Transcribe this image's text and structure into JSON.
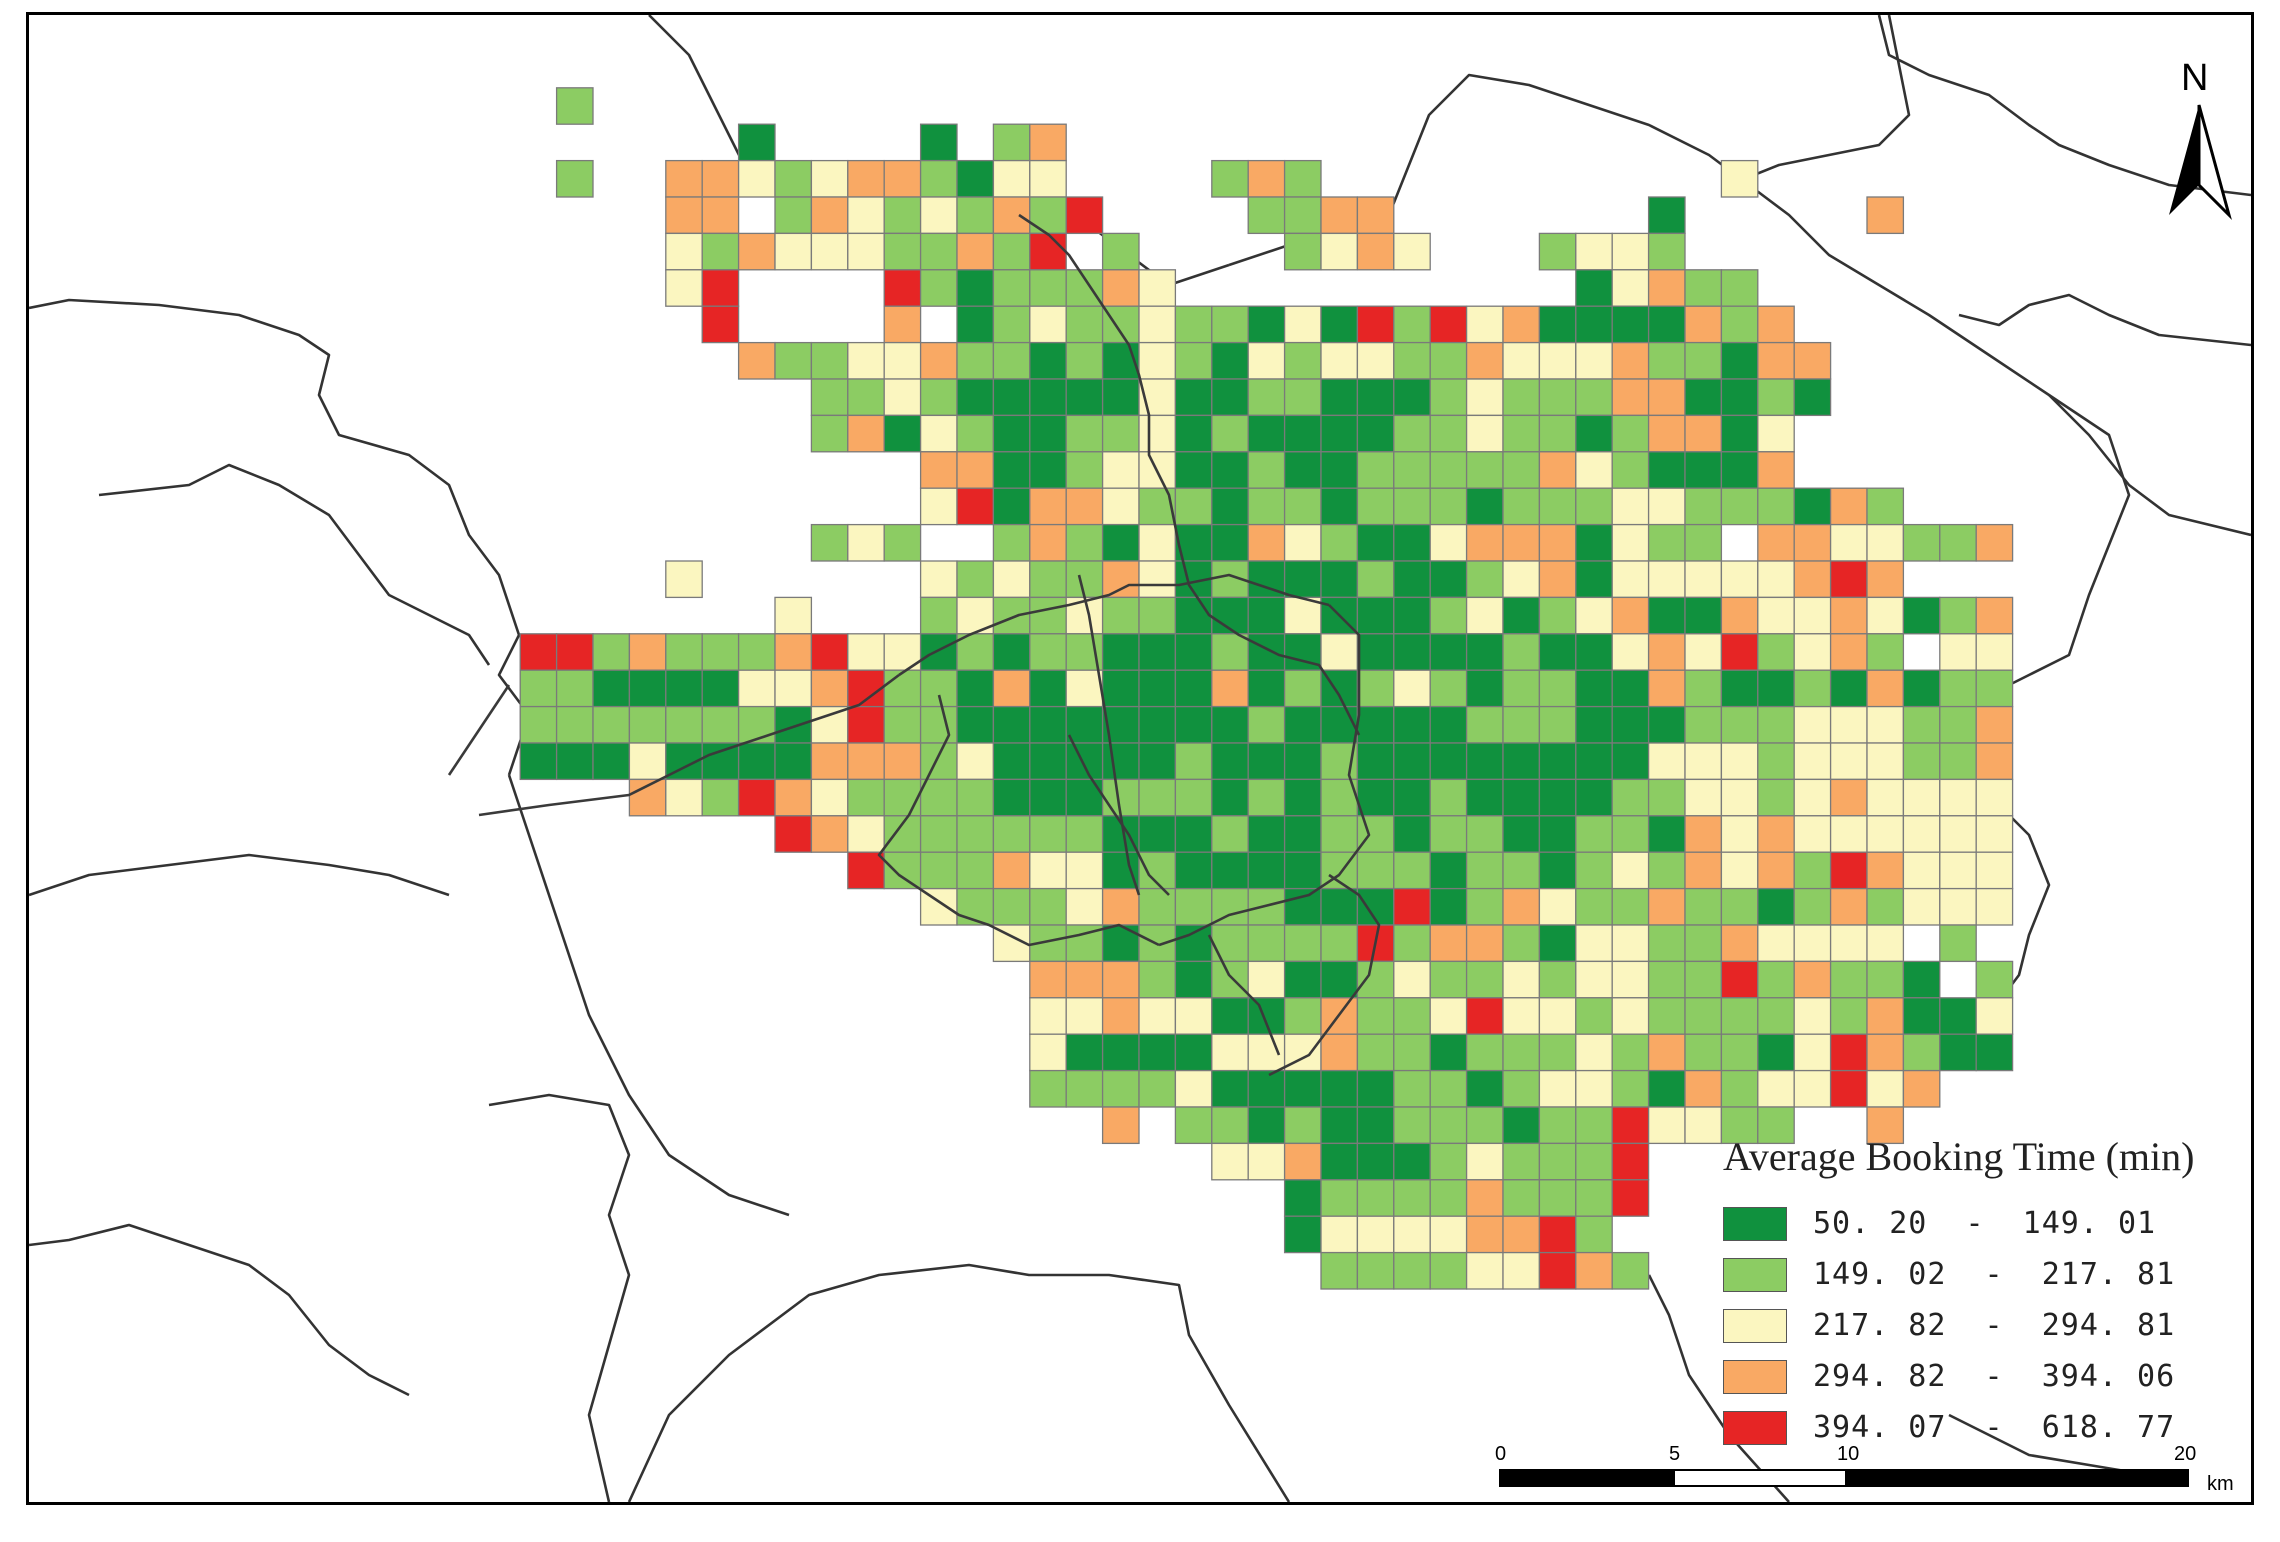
{
  "legend": {
    "title": "Average Booking Time (min)",
    "classes": [
      {
        "label": "50. 20  -  149. 01",
        "color": "#10913e",
        "min": 50.2,
        "max": 149.01
      },
      {
        "label": "149. 02  -  217. 81",
        "color": "#8ccc63",
        "min": 149.02,
        "max": 217.81
      },
      {
        "label": "217. 82  -  294. 81",
        "color": "#fbf6c0",
        "min": 217.82,
        "max": 294.81
      },
      {
        "label": "294. 82  -  394. 06",
        "color": "#f9a964",
        "min": 294.82,
        "max": 394.06
      },
      {
        "label": "394. 07  -  618. 77",
        "color": "#e62525",
        "min": 394.07,
        "max": 618.77
      }
    ]
  },
  "north_arrow": {
    "label": "N"
  },
  "scale_bar": {
    "ticks": [
      "0",
      "5",
      "10",
      "20"
    ],
    "unit": "km"
  },
  "grid": {
    "cols": 49,
    "legend_codes": "0 = no data, 1 = 50.20–149.01, 2 = 149.02–217.81, 3 = 217.82–294.81, 4 = 294.82–394.06, 5 = 394.07–618.77",
    "rows": [
      "0000000000000000000000000000000000000000000000000",
      "0000000000000000000000000000000000000000000000000",
      "0000000002000000000000000000000000000000000000000",
      "0000000000000010000102400000000000000000000000000",
      "0000000002004432344213300002420000000000030000000",
      "0000000000004402432324250000224400000001000004000",
      "0000000000003243332242502000023430002332000000000",
      "0000000000003500005212224300000000000134220000000",
      "0000000000000500004012322322131525341111424000000",
      "0000000000000042233422121321323322433342214400000",
      "0000000000000000223211111311221112322244112100000",
      "0000000000000000241321122312111122322124413000000",
      "0000000000000000000441123311211222224321114000000",
      "0000000000000000000351443221221222122233222142000",
      "0000000000000000232002421311432113444132204433224",
      "0000000000003000000323224312111211234133333454000",
      "0000000000000003000232232211131112312341143343124",
      "0000000055242224533121221112113111121134352342033",
      "0000000022111133452214131114121232122114211214122",
      "0000000022222221352211111111211111222111222333224",
      "0000000011131111444231111121112111111113332333224",
      "0000000000043254322221112221212112111122332343333",
      "0000000000000005432222221112112212211221434333333",
      "0000000000000000052224331211112221221232434254333",
      "0000000000000000000322234222211151243224221242333",
      "0000000000000000000003221212222524421332243333020",
      "0000000000000000000000444212311232232332252422102",
      "0000000000000000000000334331124223533232222324113",
      "0000000000000000000000311113334221222324221354211",
      "0000000000000000000000222231111122123321423353400",
      "0000000000000000000000004022121122212253322004000",
      "0000000000000000000000000003341112322250000000000",
      "0000000000000000000000000000012222422250000000000",
      "0000000000000000000000000000013333445200000000000",
      "0000000000000000000000000000002222335420000000000",
      "0000000000000000000000000000000000000000000000000"
    ]
  }
}
